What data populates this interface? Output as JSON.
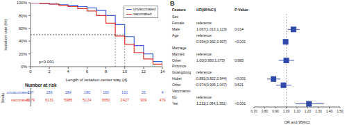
{
  "chart_data": [
    {
      "type": "line",
      "line_style": "step",
      "x_label": "Length of isolation center stay (d)",
      "y_label": "Isolation rate (%)",
      "x": [
        0,
        1,
        2,
        3,
        4,
        5,
        6,
        7,
        8,
        9,
        10,
        11,
        12,
        13,
        14
      ],
      "series": [
        {
          "name": "unvaccinated",
          "color": "#3d5fd6",
          "values": [
            100,
            99,
            98,
            97,
            96,
            94,
            92,
            88,
            80,
            66,
            47,
            33,
            20,
            8,
            2
          ],
          "median": 10
        },
        {
          "name": "vaccinated",
          "color": "#e0352b",
          "values": [
            100,
            99,
            98,
            96,
            94,
            91,
            87,
            80,
            68,
            48,
            35,
            22,
            12,
            4,
            1
          ],
          "median": 9
        }
      ],
      "median_level": 50,
      "xlim": [
        0,
        14
      ],
      "xticks": [
        0,
        2,
        4,
        6,
        8,
        10,
        12,
        14
      ],
      "ylim": [
        0,
        100
      ],
      "yticks": [
        {
          "value": 0,
          "label": "0%"
        },
        {
          "value": 20,
          "label": "20%"
        },
        {
          "value": 40,
          "label": "40%"
        },
        {
          "value": 60,
          "label": "60%"
        },
        {
          "value": 80,
          "label": "80%"
        },
        {
          "value": 100,
          "label": "100%"
        }
      ],
      "grid": false,
      "legend": "upper right",
      "annotations": [
        "p<0.001"
      ],
      "risk_table": {
        "title": "Number at risk",
        "strata_label": "Strata",
        "x": [
          0,
          2,
          4,
          6,
          8,
          10,
          12,
          14
        ],
        "rows": [
          {
            "name": "unvaccinated",
            "values": [
              187,
              186,
              184,
              180,
              160,
              101,
              26,
              4
            ]
          },
          {
            "name": "vaccinated",
            "values": [
              6179,
              6131,
              5985,
              5124,
              3650,
              2427,
              909,
              479
            ]
          }
        ]
      }
    },
    {
      "type": "forest",
      "panel_label": "B",
      "columns": [
        "Feature",
        "HR(95%CI)",
        "P Value"
      ],
      "rows": [
        {
          "feature": "Sex"
        },
        {
          "feature": "Female",
          "hr_label": "reference"
        },
        {
          "feature": "Male",
          "hr_label": "1.067(1.013,1.123)",
          "p": "0.014",
          "hr": 1.067,
          "lo": 1.013,
          "hi": 1.123
        },
        {
          "feature": "Age",
          "hr_label": "reference"
        },
        {
          "hr_label": "0.994(0.992,0.997)",
          "p": "<0.001",
          "hr": 0.994,
          "lo": 0.992,
          "hi": 0.997
        },
        {
          "feature": "Marriage"
        },
        {
          "feature": "Married",
          "hr_label": "reference"
        },
        {
          "feature": "Other",
          "hr_label": "1.00(0.930,1.073)",
          "p": "0.983",
          "hr": 1.0,
          "lo": 0.93,
          "hi": 1.073
        },
        {
          "feature": "Province"
        },
        {
          "feature": "Guangdong",
          "hr_label": "reference"
        },
        {
          "feature": "Hubei",
          "hr_label": "0.881(0.822,0.944)",
          "p": "<0.001",
          "hr": 0.881,
          "lo": 0.822,
          "hi": 0.944
        },
        {
          "feature": "Other",
          "hr_label": "0.974(0.905,1.047)",
          "p": "0.521",
          "hr": 0.974,
          "lo": 0.905,
          "hi": 1.047
        },
        {
          "feature": "Vaccination"
        },
        {
          "feature": "No",
          "hr_label": "reference"
        },
        {
          "feature": "Yes",
          "hr_label": "1.211(1.084,1.351)",
          "p": "<0.001",
          "hr": 1.211,
          "lo": 1.084,
          "hi": 1.351
        }
      ],
      "x_label": "OR and 95%CI",
      "ref_line": 1,
      "color": "#2f4aa8",
      "marker": "square",
      "xlim": [
        0.7,
        1.5
      ],
      "xticks": [
        {
          "value": 0.7,
          "label": "0.70"
        },
        {
          "value": 0.8,
          "label": "0.80"
        },
        {
          "value": 0.9,
          "label": "0.90"
        },
        {
          "value": 1.0,
          "label": "1.00"
        },
        {
          "value": 1.1,
          "label": "1.10"
        },
        {
          "value": 1.2,
          "label": "1.20"
        },
        {
          "value": 1.3,
          "label": "1.30"
        },
        {
          "value": 1.4,
          "label": "1.40"
        },
        {
          "value": 1.5,
          "label": "1.50"
        }
      ],
      "grid": false
    }
  ]
}
